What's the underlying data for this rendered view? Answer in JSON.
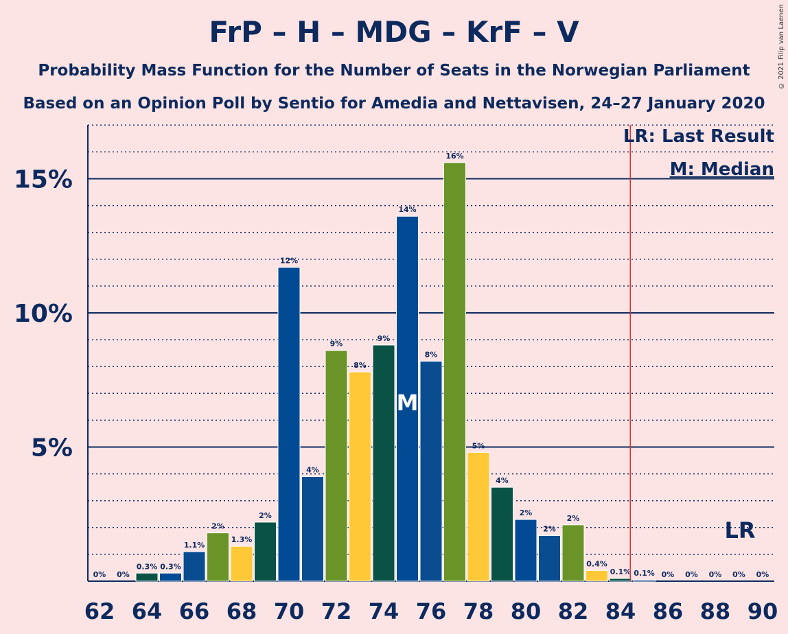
{
  "title": "FrP – H – MDG – KrF – V",
  "subtitle1": "Probability Mass Function for the Number of Seats in the Norwegian Parliament",
  "subtitle2": "Based on an Opinion Poll by Sentio for Amedia and Nettavisen, 24–27 January 2020",
  "copyright": "© 2021 Filip van Laenen",
  "legend": {
    "last_result": "LR: Last Result",
    "median": "M: Median"
  },
  "markers": {
    "median_label": "M",
    "last_result_label": "LR",
    "median_seat": 75,
    "last_result_seat": 85
  },
  "colors": {
    "background": "#fde4e4",
    "text": "#0d2a5e",
    "lr_line": "#e03030",
    "bar_palette": [
      "#0a5246",
      "#034a94",
      "#094c90",
      "#6b9428",
      "#ffc837"
    ]
  },
  "chart_data": {
    "type": "bar",
    "xlabel": "",
    "ylabel": "",
    "ylim": [
      0,
      17
    ],
    "yticks": [
      5,
      10,
      15
    ],
    "ytick_labels": [
      "5%",
      "10%",
      "15%"
    ],
    "grid": true,
    "legend_placement": "top-right",
    "x": [
      62,
      63,
      64,
      65,
      66,
      67,
      68,
      69,
      70,
      71,
      72,
      73,
      74,
      75,
      76,
      77,
      78,
      79,
      80,
      81,
      82,
      83,
      84,
      85,
      86,
      87,
      88,
      89,
      90
    ],
    "xtick_labels": [
      "62",
      "64",
      "66",
      "68",
      "70",
      "72",
      "74",
      "76",
      "78",
      "80",
      "82",
      "84",
      "86",
      "88",
      "90"
    ],
    "values": [
      0,
      0,
      0.3,
      0.3,
      1.1,
      1.8,
      1.3,
      2.2,
      11.7,
      3.9,
      8.6,
      7.8,
      8.8,
      13.6,
      8.2,
      15.6,
      4.8,
      3.5,
      2.3,
      1.7,
      2.1,
      0.4,
      0.1,
      0.05,
      0,
      0,
      0,
      0,
      0
    ],
    "data_labels": [
      "0%",
      "0%",
      "0.3%",
      "0.3%",
      "1.1%",
      "2%",
      "1.3%",
      "2%",
      "12%",
      "4%",
      "9%",
      "8%",
      "9%",
      "14%",
      "8%",
      "16%",
      "5%",
      "4%",
      "2%",
      "2%",
      "2%",
      "0.4%",
      "0.1%",
      "0.1%",
      "0%",
      "0%",
      "0%",
      "0%",
      "0%"
    ],
    "bar_colors": [
      0,
      1,
      0,
      1,
      2,
      3,
      4,
      0,
      1,
      2,
      3,
      4,
      0,
      1,
      2,
      3,
      4,
      0,
      1,
      2,
      3,
      4,
      0,
      1,
      2,
      3,
      4,
      0,
      1
    ]
  }
}
